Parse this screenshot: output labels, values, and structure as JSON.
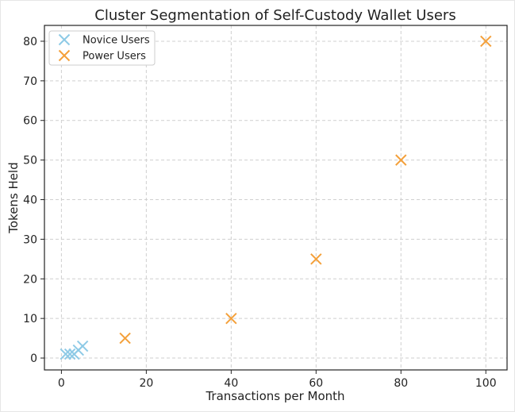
{
  "chart_data": {
    "type": "scatter",
    "title": "Cluster Segmentation of Self-Custody Wallet Users",
    "xlabel": "Transactions per Month",
    "ylabel": "Tokens Held",
    "xlim": [
      -4,
      105
    ],
    "ylim": [
      -3,
      84
    ],
    "xticks": [
      0,
      20,
      40,
      60,
      80,
      100
    ],
    "yticks": [
      0,
      10,
      20,
      30,
      40,
      50,
      60,
      70,
      80
    ],
    "grid": true,
    "legend_position": "top-left",
    "marker": "x",
    "series": [
      {
        "name": "Novice Users",
        "color": "#8ecae6",
        "points": [
          [
            1,
            1
          ],
          [
            2,
            1
          ],
          [
            3,
            1
          ],
          [
            4,
            2
          ],
          [
            5,
            3
          ]
        ]
      },
      {
        "name": "Power Users",
        "color": "#f4a03a",
        "points": [
          [
            15,
            5
          ],
          [
            40,
            10
          ],
          [
            60,
            25
          ],
          [
            80,
            50
          ],
          [
            100,
            80
          ]
        ]
      }
    ]
  }
}
